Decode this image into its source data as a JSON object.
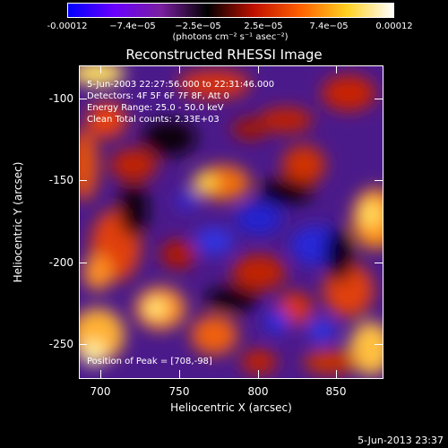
{
  "colorbar": {
    "ticks": [
      "-0.00012",
      "−7.4e−05",
      "−2.5e−05",
      "2.5e−05",
      "7.4e−05",
      "0.00012"
    ],
    "units": "(photons cm⁻² s⁻¹ asec⁻²)"
  },
  "title": "Reconstructed RHESSI Image",
  "info": {
    "line1": "5-Jun-2003 22:27:56.000 to 22:31:46.000",
    "line2": "Detectors: 4F 5F 6F 7F 8F, Att 0",
    "line3": "Energy Range: 25.0 - 50.0 keV",
    "line4": "Clean     Total counts: 2.33E+03",
    "peak": "Position of Peak = [708,-98]"
  },
  "axes": {
    "xlabel": "Heliocentric X (arcsec)",
    "ylabel": "Heliocentric Y (arcsec)",
    "xticks": [
      "700",
      "750",
      "800",
      "850"
    ],
    "yticks": [
      "-100",
      "-150",
      "-200",
      "-250"
    ]
  },
  "stamp": "5-Jun-2013 23:37",
  "chart_data": {
    "type": "heatmap",
    "title": "Reconstructed RHESSI Image",
    "xlabel": "Heliocentric X (arcsec)",
    "ylabel": "Heliocentric Y (arcsec)",
    "xlim": [
      680,
      875
    ],
    "ylim": [
      -272,
      -85
    ],
    "colorbar_range": [
      -0.00012,
      0.00012
    ],
    "colormap": [
      "#0000ff",
      "#6a00ff",
      "#7a1fa0",
      "#000000",
      "#c01000",
      "#ff6000",
      "#ffd020",
      "#ffffff"
    ],
    "peak_position": [
      708,
      -98
    ]
  }
}
